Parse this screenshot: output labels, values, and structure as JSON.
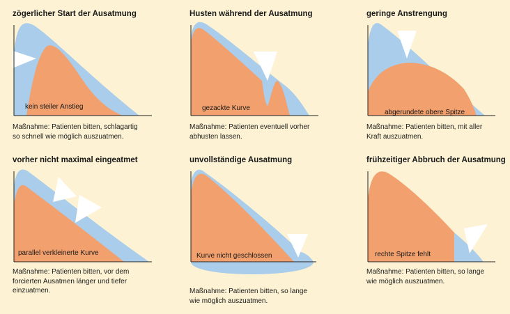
{
  "colors": {
    "background": "#fdf3d4",
    "reference_curve": "#a9cdea",
    "measured_curve": "#f2a06e",
    "arrow": "#ffffff",
    "axis": "#222222"
  },
  "panels": [
    {
      "title": "zögerlicher Start der Ausatmung",
      "curve_label": "kein steiler Anstieg",
      "measure": [
        "Maßnahme: Patienten bitten, schlagartig",
        "so schnell wie möglich auszuatmen."
      ]
    },
    {
      "title": "Husten während der Ausatmung",
      "curve_label": "gezackte Kurve",
      "measure": [
        "Maßnahme: Patienten eventuell vorher",
        "abhusten lassen."
      ]
    },
    {
      "title": "geringe Anstrengung",
      "curve_label": "abgerundete obere Spitze",
      "measure": [
        "Maßnahme: Patienten bitten, mit aller",
        "Kraft auszuatmen."
      ]
    },
    {
      "title": "vorher nicht maximal eingeatmet",
      "curve_label": "parallel verkleinerte Kurve",
      "measure": [
        "Maßnahme: Patienten bitten, vor dem",
        "forcierten Ausatmen länger und tiefer",
        "einzuatmen."
      ]
    },
    {
      "title": "unvollständige Ausatmung",
      "curve_label": "Kurve nicht geschlossen",
      "measure": [
        "Maßnahme: Patienten bitten, so lange",
        "wie möglich auszuatmen."
      ]
    },
    {
      "title": "frühzeitiger Abbruch der Ausatmung",
      "curve_label": "rechte Spitze fehlt",
      "measure": [
        "Maßnahme: Patienten bitten, so lange",
        "wie möglich auszuatmen."
      ]
    }
  ]
}
